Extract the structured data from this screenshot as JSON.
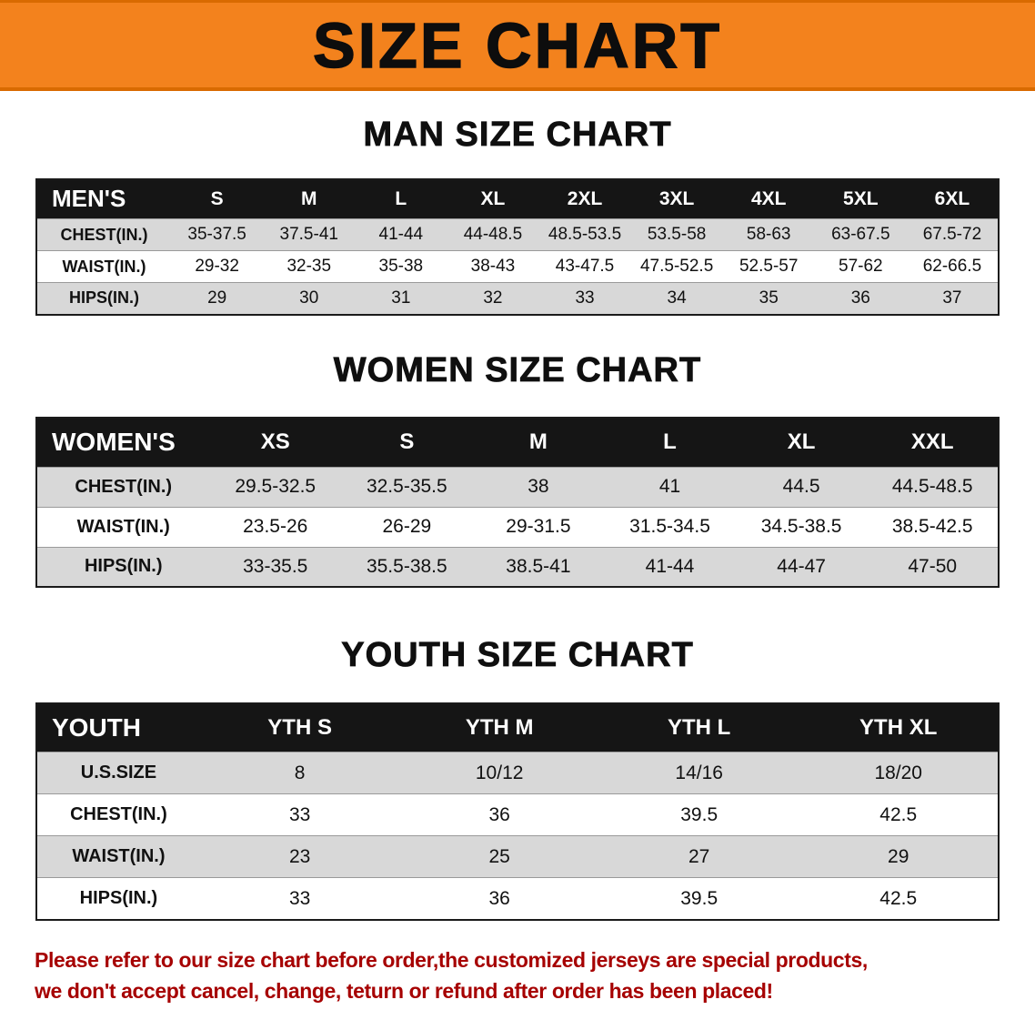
{
  "banner": {
    "title": "SIZE CHART"
  },
  "colors": {
    "banner_bg": "#F3821D",
    "banner_edge": "#D96A00",
    "banner_text": "#0D0D0D",
    "table_header_bg": "#151515",
    "table_header_text": "#FFFFFF",
    "row_alt_bg": "#D8D8D8",
    "row_bg": "#FFFFFF",
    "table_border": "#1A1A1A",
    "row_line": "#9A9A9A",
    "disclaimer_color": "#A60000"
  },
  "sections": {
    "men": {
      "heading": "MAN SIZE CHART"
    },
    "women": {
      "heading": "WOMEN SIZE CHART"
    },
    "youth": {
      "heading": "YOUTH SIZE CHART"
    }
  },
  "tables": {
    "men": {
      "header": [
        "MEN'S",
        "S",
        "M",
        "L",
        "XL",
        "2XL",
        "3XL",
        "4XL",
        "5XL",
        "6XL"
      ],
      "rows": [
        [
          "CHEST(IN.)",
          "35-37.5",
          "37.5-41",
          "41-44",
          "44-48.5",
          "48.5-53.5",
          "53.5-58",
          "58-63",
          "63-67.5",
          "67.5-72"
        ],
        [
          "WAIST(IN.)",
          "29-32",
          "32-35",
          "35-38",
          "38-43",
          "43-47.5",
          "47.5-52.5",
          "52.5-57",
          "57-62",
          "62-66.5"
        ],
        [
          "HIPS(IN.)",
          "29",
          "30",
          "31",
          "32",
          "33",
          "34",
          "35",
          "36",
          "37"
        ]
      ]
    },
    "women": {
      "header": [
        "WOMEN'S",
        "XS",
        "S",
        "M",
        "L",
        "XL",
        "XXL"
      ],
      "rows": [
        [
          "CHEST(IN.)",
          "29.5-32.5",
          "32.5-35.5",
          "38",
          "41",
          "44.5",
          "44.5-48.5"
        ],
        [
          "WAIST(IN.)",
          "23.5-26",
          "26-29",
          "29-31.5",
          "31.5-34.5",
          "34.5-38.5",
          "38.5-42.5"
        ],
        [
          "HIPS(IN.)",
          "33-35.5",
          "35.5-38.5",
          "38.5-41",
          "41-44",
          "44-47",
          "47-50"
        ]
      ]
    },
    "youth": {
      "header": [
        "YOUTH",
        "YTH S",
        "YTH M",
        "YTH L",
        "YTH XL"
      ],
      "rows": [
        [
          "U.S.SIZE",
          "8",
          "10/12",
          "14/16",
          "18/20"
        ],
        [
          "CHEST(IN.)",
          "33",
          "36",
          "39.5",
          "42.5"
        ],
        [
          "WAIST(IN.)",
          "23",
          "25",
          "27",
          "29"
        ],
        [
          "HIPS(IN.)",
          "33",
          "36",
          "39.5",
          "42.5"
        ]
      ]
    }
  },
  "disclaimer": {
    "line1": "Please refer to our size chart before order,the customized jerseys are special products,",
    "line2": "we don't accept cancel, change, teturn or refund after order has been placed!"
  }
}
